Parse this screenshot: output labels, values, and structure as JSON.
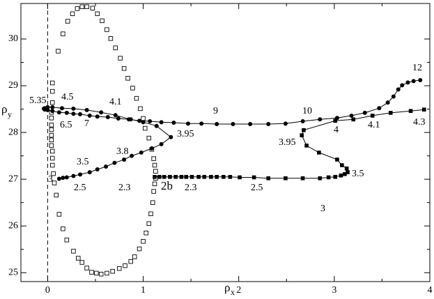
{
  "chart_data": {
    "type": "line",
    "x_label": "ρ",
    "x_label_sub": "x",
    "y_label": "ρ",
    "y_label_sub": "y",
    "xlim": [
      -0.28,
      4
    ],
    "ylim": [
      24.81,
      30.76
    ],
    "xticks": [
      0,
      1,
      2,
      3,
      4
    ],
    "yticks": [
      25,
      26,
      27,
      28,
      29,
      30
    ],
    "vline": 0,
    "series": [
      {
        "marker": "square-open",
        "line": false,
        "color": "#000000",
        "x": [
          0.06,
          0.05,
          0.05,
          0.05,
          0.04,
          0.04,
          0.04,
          0.04,
          0.04,
          0.04,
          0.04,
          0.05,
          0.05,
          0.05,
          0.11,
          0.16,
          0.21,
          0.26,
          0.31,
          0.36,
          0.41,
          0.47,
          0.52,
          0.57,
          0.62,
          0.66,
          0.71,
          0.76,
          0.8,
          0.84,
          0.89,
          0.93,
          0.97,
          1.0,
          1.02,
          1.06,
          1.09,
          1.11,
          1.12,
          1.13,
          1.13,
          1.12,
          1.11,
          1.1,
          1.08,
          1.06,
          1.03,
          1.0,
          0.96,
          0.91,
          0.87,
          0.81,
          0.75,
          0.68,
          0.62,
          0.56,
          0.51,
          0.46,
          0.41,
          0.36,
          0.32,
          0.27,
          0.2,
          0.16,
          0.12,
          0.09,
          0.07
        ],
        "values": [
          27.12,
          27.3,
          27.45,
          27.6,
          27.72,
          27.84,
          27.94,
          28.06,
          28.16,
          28.31,
          28.43,
          28.64,
          28.88,
          29.06,
          29.74,
          30.11,
          30.38,
          30.54,
          30.65,
          30.69,
          30.69,
          30.66,
          30.54,
          30.39,
          30.2,
          30.01,
          29.81,
          29.59,
          29.37,
          29.16,
          28.95,
          28.73,
          28.51,
          28.3,
          28.09,
          27.88,
          27.64,
          27.44,
          27.3,
          27.17,
          27.02,
          26.9,
          26.74,
          26.5,
          26.26,
          26.05,
          25.85,
          25.67,
          25.51,
          25.34,
          25.24,
          25.15,
          25.09,
          25.03,
          24.99,
          24.97,
          24.99,
          25.01,
          25.1,
          25.22,
          25.31,
          25.46,
          25.7,
          25.94,
          26.25,
          26.66,
          26.92
        ]
      },
      {
        "marker": "circle",
        "line": true,
        "color": "#000000",
        "x": [
          0.12,
          0.16,
          0.2,
          0.27,
          0.34,
          0.44,
          0.52,
          0.61,
          0.7,
          0.8,
          0.88,
          0.98,
          1.09,
          1.19,
          1.29,
          1.14,
          1.0,
          0.87,
          0.71,
          0.56,
          0.41,
          0.27,
          0.15,
          0.05,
          0.0,
          -0.03,
          -0.04,
          -0.03,
          0.0,
          0.05,
          0.12,
          0.2,
          0.27,
          0.34,
          0.44,
          0.52,
          0.63,
          0.74,
          0.85,
          0.96,
          1.07,
          1.19,
          1.32,
          1.47,
          1.61,
          1.77,
          1.94,
          2.12,
          2.31,
          2.49,
          2.67,
          2.85,
          3.03,
          3.18,
          3.32,
          3.47,
          3.56,
          3.62,
          3.67,
          3.71,
          3.77,
          3.83,
          3.9
        ],
        "values": [
          27.01,
          27.03,
          27.04,
          27.07,
          27.1,
          27.15,
          27.21,
          27.27,
          27.35,
          27.42,
          27.5,
          27.57,
          27.66,
          27.75,
          27.9,
          28.14,
          28.22,
          28.28,
          28.37,
          28.43,
          28.48,
          28.51,
          28.52,
          28.54,
          28.54,
          28.52,
          28.51,
          28.49,
          28.48,
          28.46,
          28.43,
          28.42,
          28.4,
          28.39,
          28.36,
          28.34,
          28.33,
          28.3,
          28.28,
          28.25,
          28.24,
          28.22,
          28.21,
          28.19,
          28.19,
          28.18,
          28.18,
          28.18,
          28.18,
          28.19,
          28.24,
          28.28,
          28.31,
          28.36,
          28.42,
          28.52,
          28.64,
          28.77,
          28.92,
          29.01,
          29.07,
          29.1,
          29.12
        ]
      },
      {
        "marker": "square",
        "line": true,
        "color": "#000000",
        "x": [
          1.12,
          1.17,
          1.22,
          1.28,
          1.34,
          1.4,
          1.45,
          1.51,
          1.58,
          1.64,
          1.71,
          1.77,
          1.84,
          1.91,
          2.01,
          2.16,
          2.31,
          2.49,
          2.67,
          2.85,
          2.94,
          3.01,
          3.07,
          3.11,
          3.14,
          3.13,
          3.08,
          3.03,
          2.84,
          2.71,
          2.66,
          2.68,
          3.01,
          3.2,
          3.4,
          3.59,
          3.8,
          3.94
        ],
        "values": [
          27.05,
          27.05,
          27.05,
          27.05,
          27.05,
          27.05,
          27.05,
          27.05,
          27.05,
          27.05,
          27.05,
          27.05,
          27.05,
          27.05,
          27.04,
          27.04,
          27.02,
          27.02,
          27.02,
          27.02,
          27.04,
          27.05,
          27.08,
          27.11,
          27.15,
          27.23,
          27.3,
          27.42,
          27.57,
          27.72,
          27.94,
          28.05,
          28.25,
          28.28,
          28.36,
          28.42,
          28.46,
          28.49
        ]
      }
    ],
    "annotations": [
      "5.35",
      "4.5",
      "4.1",
      "6.5",
      "7",
      "9",
      "10",
      "12",
      "3.95",
      "3.95",
      "4",
      "4.1",
      "4.3",
      "3.5",
      "3.8",
      "3",
      "2.5",
      "2.3",
      "2b",
      "2.3",
      "2.5",
      "3",
      "3.5"
    ]
  }
}
